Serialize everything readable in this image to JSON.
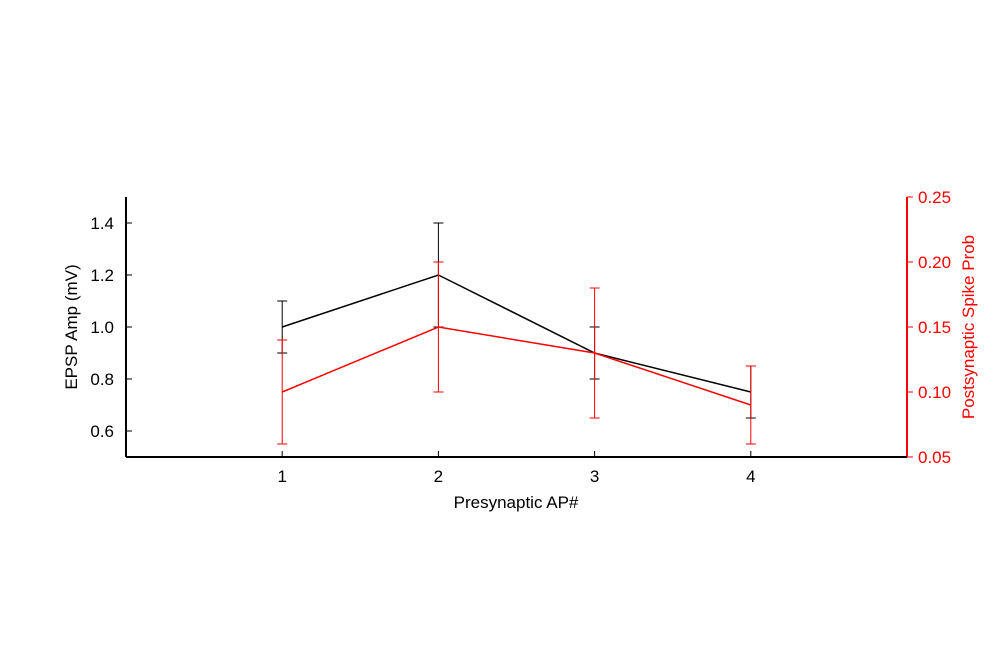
{
  "chart_data": {
    "type": "line",
    "title": "",
    "x": [
      1,
      2,
      3,
      4
    ],
    "x_ticks": [
      "1",
      "2",
      "3",
      "4"
    ],
    "xlabel": "Presynaptic AP#",
    "xlim": [
      0,
      5
    ],
    "ylabel_left": "EPSP Amp (mV)",
    "ylim_left": [
      0.5,
      1.5
    ],
    "yticks_left": [
      "0.6",
      "0.8",
      "1.0",
      "1.2",
      "1.4"
    ],
    "ylabel_right": "Postsynaptic Spike Prob",
    "ylim_right": [
      0.05,
      0.25
    ],
    "yticks_right": [
      "0.05",
      "0.10",
      "0.15",
      "0.20",
      "0.25"
    ],
    "grid": false,
    "legend": "none",
    "series": [
      {
        "axis": "left",
        "color": "#000000",
        "values": [
          1.0,
          1.2,
          0.9,
          0.75
        ],
        "error": [
          0.1,
          0.2,
          0.1,
          0.1
        ]
      },
      {
        "axis": "right",
        "color": "#ff0000",
        "values": [
          0.1,
          0.15,
          0.13,
          0.09
        ],
        "error": [
          0.04,
          0.05,
          0.05,
          0.03
        ]
      }
    ]
  }
}
